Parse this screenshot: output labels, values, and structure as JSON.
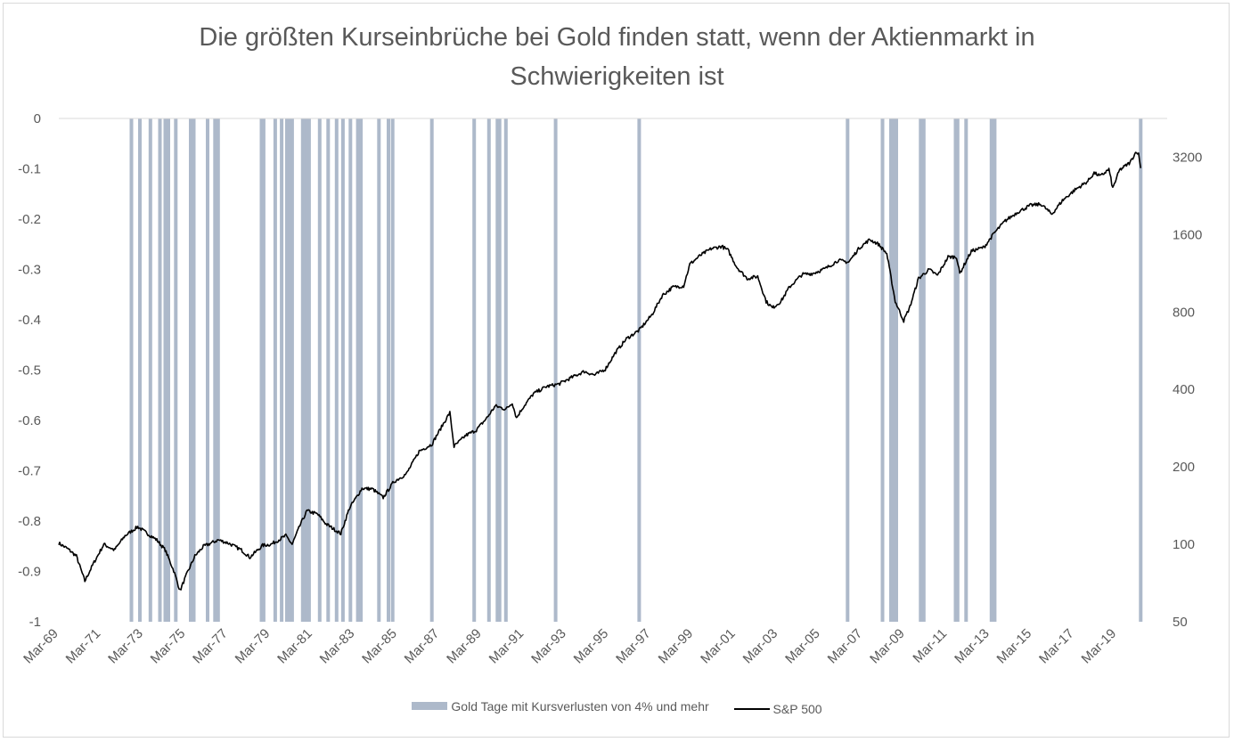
{
  "chart_data": {
    "type": "line",
    "title_lines": [
      "Die größten Kurseinbrüche bei Gold finden statt, wenn der Aktienmarkt in",
      "Schwierigkeiten ist"
    ],
    "left_axis": {
      "ylim": [
        -1,
        0
      ],
      "ticks": [
        "0",
        "-0.1",
        "-0.2",
        "-0.3",
        "-0.4",
        "-0.5",
        "-0.6",
        "-0.7",
        "-0.8",
        "-0.9",
        "-1"
      ],
      "values": [
        0,
        -0.1,
        -0.2,
        -0.3,
        -0.4,
        -0.5,
        -0.6,
        -0.7,
        -0.8,
        -0.9,
        -1
      ]
    },
    "right_axis": {
      "scale": "log2",
      "ylim": [
        50,
        4525
      ],
      "ticks": [
        "3200",
        "1600",
        "800",
        "400",
        "200",
        "100",
        "50"
      ],
      "values": [
        3200,
        1600,
        800,
        400,
        200,
        100,
        50
      ]
    },
    "x_axis": {
      "range": [
        1969.17,
        2020.5
      ],
      "ticks": [
        "Mar-69",
        "Mar-71",
        "Mar-73",
        "Mar-75",
        "Mar-77",
        "Mar-79",
        "Mar-81",
        "Mar-83",
        "Mar-85",
        "Mar-87",
        "Mar-89",
        "Mar-91",
        "Mar-93",
        "Mar-95",
        "Mar-97",
        "Mar-99",
        "Mar-01",
        "Mar-03",
        "Mar-05",
        "Mar-07",
        "Mar-09",
        "Mar-11",
        "Mar-13",
        "Mar-15",
        "Mar-17",
        "Mar-19"
      ],
      "tick_years": [
        1969.17,
        1971.17,
        1973.17,
        1975.17,
        1977.17,
        1979.17,
        1981.17,
        1983.17,
        1985.17,
        1987.17,
        1989.17,
        1991.17,
        1993.17,
        1995.17,
        1997.17,
        1999.17,
        2001.17,
        2003.17,
        2005.17,
        2007.17,
        2009.17,
        2011.17,
        2013.17,
        2015.17,
        2017.17,
        2019.17
      ]
    },
    "series": [
      {
        "name": "Gold Tage mit Kursverlusten von 4% und mehr",
        "type": "bar",
        "color": "#adb9ca",
        "value": -1,
        "dates": [
          1972.6,
          1973.0,
          1973.5,
          1973.95,
          1974.2,
          1974.35,
          1974.7,
          1975.4,
          1975.55,
          1976.2,
          1976.55,
          1976.7,
          1978.75,
          1978.85,
          1979.4,
          1979.7,
          1979.95,
          1980.1,
          1980.2,
          1980.7,
          1980.8,
          1980.9,
          1981.0,
          1981.5,
          1981.9,
          1982.3,
          1982.6,
          1982.95,
          1983.3,
          1983.45,
          1984.3,
          1984.75,
          1984.95,
          1986.8,
          1988.8,
          1989.5,
          1989.9,
          1990.0,
          1990.3,
          1992.65,
          1996.6,
          2006.45,
          2008.1,
          2008.5,
          2008.6,
          2008.75,
          2009.9,
          2010.05,
          2011.55,
          2011.65,
          2012.05,
          2013.25,
          2013.4,
          2020.3
        ]
      },
      {
        "name": "S&P 500",
        "type": "line",
        "color": "#000000",
        "axis": "right",
        "points": [
          [
            1969.17,
            101
          ],
          [
            1969.6,
            96
          ],
          [
            1970.0,
            90
          ],
          [
            1970.4,
            72
          ],
          [
            1970.8,
            84
          ],
          [
            1971.3,
            100
          ],
          [
            1971.8,
            95
          ],
          [
            1972.3,
            108
          ],
          [
            1972.9,
            117
          ],
          [
            1973.3,
            111
          ],
          [
            1973.8,
            104
          ],
          [
            1974.2,
            95
          ],
          [
            1974.6,
            79
          ],
          [
            1974.9,
            66
          ],
          [
            1975.2,
            76
          ],
          [
            1975.6,
            90
          ],
          [
            1976.0,
            98
          ],
          [
            1976.7,
            104
          ],
          [
            1977.2,
            101
          ],
          [
            1977.8,
            95
          ],
          [
            1978.2,
            89
          ],
          [
            1978.8,
            99
          ],
          [
            1979.2,
            100
          ],
          [
            1979.9,
            108
          ],
          [
            1980.2,
            100
          ],
          [
            1980.6,
            120
          ],
          [
            1980.9,
            135
          ],
          [
            1981.4,
            131
          ],
          [
            1981.8,
            120
          ],
          [
            1982.5,
            110
          ],
          [
            1982.9,
            138
          ],
          [
            1983.5,
            165
          ],
          [
            1984.0,
            164
          ],
          [
            1984.5,
            152
          ],
          [
            1985.0,
            175
          ],
          [
            1985.6,
            188
          ],
          [
            1986.2,
            230
          ],
          [
            1986.8,
            245
          ],
          [
            1987.3,
            290
          ],
          [
            1987.65,
            325
          ],
          [
            1987.85,
            240
          ],
          [
            1988.4,
            265
          ],
          [
            1988.9,
            278
          ],
          [
            1989.4,
            310
          ],
          [
            1989.8,
            345
          ],
          [
            1990.3,
            335
          ],
          [
            1990.6,
            355
          ],
          [
            1990.8,
            310
          ],
          [
            1991.1,
            340
          ],
          [
            1991.6,
            385
          ],
          [
            1992.2,
            410
          ],
          [
            1992.8,
            420
          ],
          [
            1993.4,
            445
          ],
          [
            1994.0,
            470
          ],
          [
            1994.5,
            455
          ],
          [
            1995.0,
            480
          ],
          [
            1995.5,
            560
          ],
          [
            1996.0,
            630
          ],
          [
            1996.6,
            680
          ],
          [
            1997.2,
            780
          ],
          [
            1997.7,
            930
          ],
          [
            1998.2,
            1000
          ],
          [
            1998.7,
            1010
          ],
          [
            1999.0,
            1230
          ],
          [
            1999.5,
            1330
          ],
          [
            2000.0,
            1410
          ],
          [
            2000.5,
            1440
          ],
          [
            2000.8,
            1390
          ],
          [
            2001.2,
            1200
          ],
          [
            2001.7,
            1080
          ],
          [
            2002.2,
            1100
          ],
          [
            2002.6,
            880
          ],
          [
            2002.9,
            830
          ],
          [
            2003.3,
            880
          ],
          [
            2003.7,
            1000
          ],
          [
            2004.3,
            1120
          ],
          [
            2004.8,
            1130
          ],
          [
            2005.4,
            1180
          ],
          [
            2006.0,
            1270
          ],
          [
            2006.5,
            1250
          ],
          [
            2007.0,
            1420
          ],
          [
            2007.5,
            1530
          ],
          [
            2007.9,
            1470
          ],
          [
            2008.3,
            1350
          ],
          [
            2008.7,
            880
          ],
          [
            2009.1,
            740
          ],
          [
            2009.4,
            840
          ],
          [
            2009.8,
            1080
          ],
          [
            2010.3,
            1170
          ],
          [
            2010.7,
            1110
          ],
          [
            2011.2,
            1310
          ],
          [
            2011.6,
            1310
          ],
          [
            2011.75,
            1130
          ],
          [
            2012.3,
            1380
          ],
          [
            2012.9,
            1430
          ],
          [
            2013.4,
            1630
          ],
          [
            2013.9,
            1810
          ],
          [
            2014.5,
            1960
          ],
          [
            2015.1,
            2080
          ],
          [
            2015.6,
            2100
          ],
          [
            2016.1,
            1920
          ],
          [
            2016.6,
            2170
          ],
          [
            2017.2,
            2390
          ],
          [
            2017.8,
            2580
          ],
          [
            2018.1,
            2780
          ],
          [
            2018.4,
            2700
          ],
          [
            2018.8,
            2870
          ],
          [
            2018.98,
            2420
          ],
          [
            2019.3,
            2850
          ],
          [
            2019.8,
            3050
          ],
          [
            2020.1,
            3380
          ],
          [
            2020.2,
            3280
          ],
          [
            2020.3,
            2900
          ]
        ]
      }
    ],
    "legend": [
      "Gold Tage mit Kursverlusten von 4% und mehr",
      "S&P 500"
    ],
    "legend_position": "bottom",
    "grid": false
  }
}
